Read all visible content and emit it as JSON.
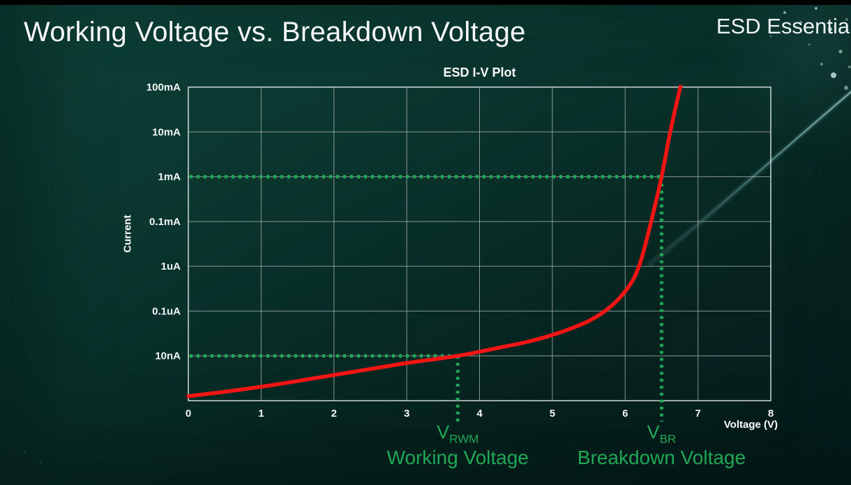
{
  "page": {
    "title": "Working Voltage vs. Breakdown Voltage",
    "brand": "ESD Essential"
  },
  "chart_data": {
    "type": "line",
    "title": "ESD I-V Plot",
    "xlabel": "Voltage (V)",
    "ylabel": "Current",
    "x_range": [
      0,
      8
    ],
    "x_ticks": [
      0,
      1,
      2,
      3,
      4,
      5,
      6,
      7,
      8
    ],
    "y_axis": {
      "scale": "log-decades",
      "rows": 7,
      "gridline_labels_top_to_bottom": [
        "100mA",
        "10mA",
        "1mA",
        "0.1mA",
        "1uA",
        "0.1uA",
        "10nA"
      ],
      "note": "row 0 = unlabeled bottom axis, row 1 = 10nA ... row 7 = 100mA"
    },
    "grid_color": "#a9b3ae",
    "annotation_color": "#1fa855",
    "series": [
      {
        "name": "I-V curve",
        "color": "#f31414",
        "points": [
          [
            0,
            0.1
          ],
          [
            0.6,
            0.22
          ],
          [
            1.2,
            0.36
          ],
          [
            1.8,
            0.52
          ],
          [
            2.4,
            0.68
          ],
          [
            3.0,
            0.84
          ],
          [
            3.7,
            1.0
          ],
          [
            4.2,
            1.16
          ],
          [
            4.7,
            1.33
          ],
          [
            5.1,
            1.52
          ],
          [
            5.5,
            1.78
          ],
          [
            5.8,
            2.1
          ],
          [
            6.05,
            2.55
          ],
          [
            6.2,
            3.05
          ],
          [
            6.35,
            3.95
          ],
          [
            6.5,
            5.0
          ],
          [
            6.6,
            5.85
          ],
          [
            6.7,
            6.6
          ],
          [
            6.78,
            7.15
          ]
        ]
      }
    ],
    "annotations": [
      {
        "id": "vrwm",
        "symbol": "V",
        "subscript": "RWM",
        "caption": "Working Voltage",
        "voltage": 3.7,
        "row": 1,
        "current_label": "10nA"
      },
      {
        "id": "vbr",
        "symbol": "V",
        "subscript": "BR",
        "caption": "Breakdown Voltage",
        "voltage": 6.5,
        "row": 5,
        "current_label": "1mA"
      }
    ]
  }
}
